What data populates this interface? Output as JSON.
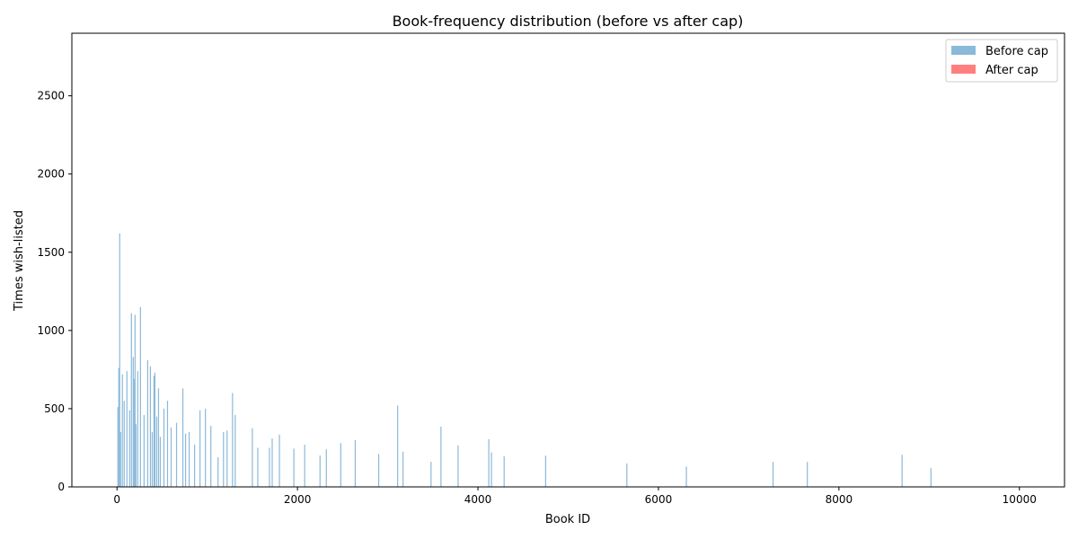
{
  "chart_data": {
    "type": "bar",
    "title": "Book-frequency distribution (before vs after cap)",
    "xlabel": "Book ID",
    "ylabel": "Times wish-listed",
    "xlim": [
      -500,
      10500
    ],
    "ylim": [
      0,
      2900
    ],
    "x_ticks": [
      0,
      2000,
      4000,
      6000,
      8000,
      10000
    ],
    "y_ticks": [
      0,
      500,
      1000,
      1500,
      2000,
      2500
    ],
    "legend_position": "top-right",
    "grid": false,
    "colors": {
      "before_cap": "#8bb9d9",
      "after_cap": "#ff7f7f",
      "overlap": "#c46575"
    },
    "series": [
      {
        "name": "Before cap",
        "color": "#8bb9d9",
        "x": [
          10,
          20,
          30,
          40,
          60,
          80,
          110,
          140,
          160,
          180,
          190,
          200,
          210,
          230,
          260,
          300,
          340,
          370,
          390,
          410,
          420,
          440,
          460,
          480,
          520,
          560,
          600,
          660,
          730,
          760,
          800,
          860,
          920,
          980,
          1040,
          1120,
          1180,
          1220,
          1280,
          1310,
          1500,
          1560,
          1690,
          1720,
          1800,
          1960,
          2080,
          2250,
          2320,
          2480,
          2640,
          2900,
          3110,
          3170,
          3480,
          3590,
          3780,
          4120,
          4150,
          4290,
          4750,
          5650,
          6310,
          7270,
          7650,
          8700,
          9020
        ],
        "values": [
          510,
          760,
          1620,
          350,
          720,
          550,
          740,
          490,
          1110,
          830,
          690,
          1100,
          400,
          740,
          1150,
          460,
          810,
          770,
          350,
          710,
          730,
          450,
          630,
          320,
          500,
          550,
          380,
          410,
          630,
          340,
          350,
          270,
          490,
          500,
          390,
          190,
          350,
          360,
          600,
          460,
          375,
          250,
          250,
          310,
          335,
          245,
          270,
          200,
          240,
          280,
          300,
          210,
          520,
          225,
          160,
          385,
          265,
          305,
          220,
          195,
          200,
          150,
          130,
          160,
          160,
          205,
          120
        ]
      },
      {
        "name": "After cap",
        "color": "#ff7f7f",
        "x": [],
        "values": []
      }
    ]
  }
}
